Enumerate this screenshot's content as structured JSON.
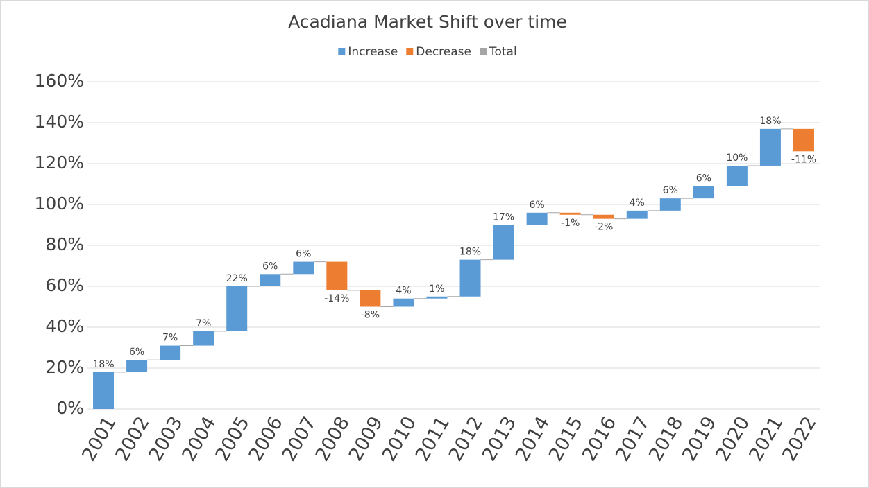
{
  "chart_data": {
    "type": "waterfall",
    "title": "Acadiana Market Shift over time",
    "legend": [
      {
        "name": "Increase",
        "color": "#5b9bd5"
      },
      {
        "name": "Decrease",
        "color": "#ed7d31"
      },
      {
        "name": "Total",
        "color": "#a5a5a5"
      }
    ],
    "categories": [
      "2001",
      "2002",
      "2003",
      "2004",
      "2005",
      "2006",
      "2007",
      "2008",
      "2009",
      "2010",
      "2011",
      "2012",
      "2013",
      "2014",
      "2015",
      "2016",
      "2017",
      "2018",
      "2019",
      "2020",
      "2021",
      "2022"
    ],
    "values": [
      18,
      6,
      7,
      7,
      22,
      6,
      6,
      -14,
      -8,
      4,
      1,
      18,
      17,
      6,
      -1,
      -2,
      4,
      6,
      6,
      10,
      18,
      -11
    ],
    "value_labels": [
      "18%",
      "6%",
      "7%",
      "7%",
      "22%",
      "6%",
      "6%",
      "-14%",
      "-8%",
      "4%",
      "1%",
      "18%",
      "17%",
      "6%",
      "-1%",
      "-2%",
      "4%",
      "6%",
      "6%",
      "10%",
      "18%",
      "-11%"
    ],
    "ylim": [
      0,
      160
    ],
    "yticks": [
      {
        "value": 0,
        "label": "0%"
      },
      {
        "value": 20,
        "label": "20%"
      },
      {
        "value": 40,
        "label": "40%"
      },
      {
        "value": 60,
        "label": "60%"
      },
      {
        "value": 80,
        "label": "80%"
      },
      {
        "value": 100,
        "label": "100%"
      },
      {
        "value": 120,
        "label": "120%"
      },
      {
        "value": 140,
        "label": "140%"
      },
      {
        "value": 160,
        "label": "160%"
      }
    ],
    "grid": true
  }
}
